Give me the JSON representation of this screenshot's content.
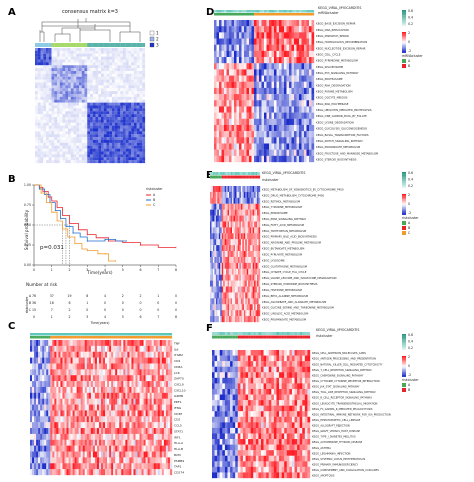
{
  "panel_letters": [
    "A",
    "B",
    "C",
    "D",
    "E",
    "F"
  ],
  "colors": {
    "red": "#e8232a",
    "blue": "#1f33c8",
    "white": "#ffffff",
    "teal": "#5cc6b8",
    "orange": "#f29b2c",
    "deep_blue": "#1b2fb5",
    "green_annot": "#48a85a"
  },
  "panel_a": {
    "title": "consensus matrix k=3",
    "legend": [
      "1",
      "2",
      "3"
    ]
  },
  "panel_b": {
    "y_label": "Survival probability",
    "x_label": "Time(years)",
    "p_value": "p=0.031",
    "legend_title": "riskcluster",
    "legend": [
      "A",
      "B",
      "C"
    ],
    "x_ticks": [
      "0",
      "1",
      "2",
      "3",
      "4",
      "5",
      "6",
      "7",
      "8"
    ],
    "y_ticks": [
      "1.00",
      "0.75",
      "0.50",
      "0.25",
      "0.00"
    ],
    "risk_table_title": "Number at risk",
    "risk_table_y_label": "riskcluster",
    "risk_rows": [
      {
        "name": "A",
        "values": [
          "76",
          "37",
          "19",
          "8",
          "4",
          "2",
          "2",
          "1",
          "0"
        ]
      },
      {
        "name": "B",
        "values": [
          "36",
          "16",
          "6",
          "1",
          "0",
          "0",
          "0",
          "0",
          "0"
        ]
      },
      {
        "name": "C",
        "values": [
          "15",
          "7",
          "2",
          "0",
          "0",
          "0",
          "0",
          "0",
          "0"
        ]
      }
    ]
  },
  "panel_c": {
    "genes": [
      "TNF",
      "IL6",
      "ITGB2",
      "CD4",
      "CD8A",
      "LCK",
      "ZAP70",
      "CXCL9",
      "CXCL10",
      "GZMB",
      "PRF1",
      "IFNG",
      "CD3E",
      "CD2",
      "CCL5",
      "STAT1",
      "IRF1",
      "HLA-A",
      "HLA-B",
      "B2M",
      "PSMB9",
      "TAP1",
      "CD274"
    ]
  },
  "panel_d": {
    "annotation_title": "KEGG_VIRAL_MYOCARDITIS",
    "annotation_sub": "mRNAcluster",
    "legend_top": [
      "0.6",
      "0.4",
      "0.2"
    ],
    "legend_mid": [
      "2",
      "0",
      "-2"
    ],
    "legend_bottom_title": "mRNAcluster",
    "legend_bottom": [
      "A",
      "B"
    ],
    "pathways": [
      "KEGG_BASE_EXCISION_REPAIR",
      "KEGG_DNA_REPLICATION",
      "KEGG_MISMATCH_REPAIR",
      "KEGG_HOMOLOGOUS_RECOMBINATION",
      "KEGG_NUCLEOTIDE_EXCISION_REPAIR",
      "KEGG_CELL_CYCLE",
      "KEGG_PYRIMIDINE_METABOLISM",
      "KEGG_SPLICEOSOME",
      "KEGG_P53_SIGNALING_PATHWAY",
      "KEGG_PROTEASOME",
      "KEGG_RNA_DEGRADATION",
      "KEGG_PURINE_METABOLISM",
      "KEGG_OOCYTE_MEIOSIS",
      "KEGG_RNA_POLYMERASE",
      "KEGG_UBIQUITIN_MEDIATED_PROTEOLYSIS",
      "KEGG_ONE_CARBON_POOL_BY_FOLATE",
      "KEGG_LYSINE_DEGRADATION",
      "KEGG_GLYCOLYSIS_GLUCONEOGENESIS",
      "KEGG_BASAL_TRANSCRIPTION_FACTORS",
      "KEGG_NOTCH_SIGNALING_PATHWAY",
      "KEGG_PROPANOATE_METABOLISM",
      "KEGG_FRUCTOSE_AND_MANNOSE_METABOLISM",
      "KEGG_STEROID_BIOSYNTHESIS"
    ]
  },
  "panel_e": {
    "annotation_title": "KEGG_VIRAL_MYOCARDITIS",
    "annotation_sub": "riskcluster",
    "legend_top": [
      "0.6",
      "0.4",
      "0.2"
    ],
    "legend_mid": [
      "2",
      "0",
      "-2"
    ],
    "legend_bottom_title": "riskcluster",
    "legend_bottom": [
      "A",
      "B",
      "C"
    ],
    "pathways": [
      "KEGG_METABOLISM_OF_XENOBIOTICS_BY_CYTOCHROME_P450",
      "KEGG_DRUG_METABOLISM_CYTOCHROME_P450",
      "KEGG_RETINOL_METABOLISM",
      "KEGG_TYROSINE_METABOLISM",
      "KEGG_PEROXISOME",
      "KEGG_PPAR_SIGNALING_PATHWAY",
      "KEGG_FATTY_ACID_METABOLISM",
      "KEGG_TRYPTOPHAN_METABOLISM",
      "KEGG_PRIMARY_BILE_ACID_BIOSYNTHESIS",
      "KEGG_ARGININE_AND_PROLINE_METABOLISM",
      "KEGG_BUTANOATE_METABOLISM",
      "KEGG_PYRUVATE_METABOLISM",
      "KEGG_LYSOSOME",
      "KEGG_GLUTATHIONE_METABOLISM",
      "KEGG_CITRATE_CYCLE_TCA_CYCLE",
      "KEGG_VALINE_LEUCINE_AND_ISOLEUCINE_DEGRADATION",
      "KEGG_STEROID_HORMONE_BIOSYNTHESIS",
      "KEGG_HISTIDINE_METABOLISM",
      "KEGG_BETA_ALANINE_METABOLISM",
      "KEGG_ASCORBATE_AND_ALDARATE_METABOLISM",
      "KEGG_GLYCINE_SERINE_AND_THREONINE_METABOLISM",
      "KEGG_LINOLEIC_ACID_METABOLISM",
      "KEGG_PROPANOATE_METABOLISM"
    ]
  },
  "panel_f": {
    "annotation_title": "KEGG_VIRAL_MYOCARDITIS",
    "annotation_sub": "riskcluster",
    "legend_top": [
      "0.6",
      "0.4",
      "0.2"
    ],
    "legend_mid": [
      "2",
      "0",
      "-2"
    ],
    "legend_bottom_title": "riskcluster",
    "legend_bottom": [
      "A",
      "B"
    ],
    "pathways": [
      "KEGG_CELL_ADHESION_MOLECULES_CAMS",
      "KEGG_ANTIGEN_PROCESSING_AND_PRESENTATION",
      "KEGG_NATURAL_KILLER_CELL_MEDIATED_CYTOTOXICITY",
      "KEGG_T_CELL_RECEPTOR_SIGNALING_PATHWAY",
      "KEGG_CHEMOKINE_SIGNALING_PATHWAY",
      "KEGG_CYTOKINE_CYTOKINE_RECEPTOR_INTERACTION",
      "KEGG_JAK_STAT_SIGNALING_PATHWAY",
      "KEGG_TOLL_LIKE_RECEPTOR_SIGNALING_PATHWAY",
      "KEGG_B_CELL_RECEPTOR_SIGNALING_PATHWAY",
      "KEGG_LEUKOCYTE_TRANSENDOTHELIAL_MIGRATION",
      "KEGG_FC_GAMMA_R_MEDIATED_PHAGOCYTOSIS",
      "KEGG_INTESTINAL_IMMUNE_NETWORK_FOR_IGA_PRODUCTION",
      "KEGG_HEMATOPOIETIC_CELL_LINEAGE",
      "KEGG_ALLOGRAFT_REJECTION",
      "KEGG_GRAFT_VERSUS_HOST_DISEASE",
      "KEGG_TYPE_I_DIABETES_MELLITUS",
      "KEGG_AUTOIMMUNE_THYROID_DISEASE",
      "KEGG_ASTHMA",
      "KEGG_LEISHMANIA_INFECTION",
      "KEGG_SYSTEMIC_LUPUS_ERYTHEMATOSUS",
      "KEGG_PRIMARY_IMMUNODEFICIENCY",
      "KEGG_COMPLEMENT_AND_COAGULATION_CASCADES",
      "KEGG_APOPTOSIS"
    ]
  }
}
